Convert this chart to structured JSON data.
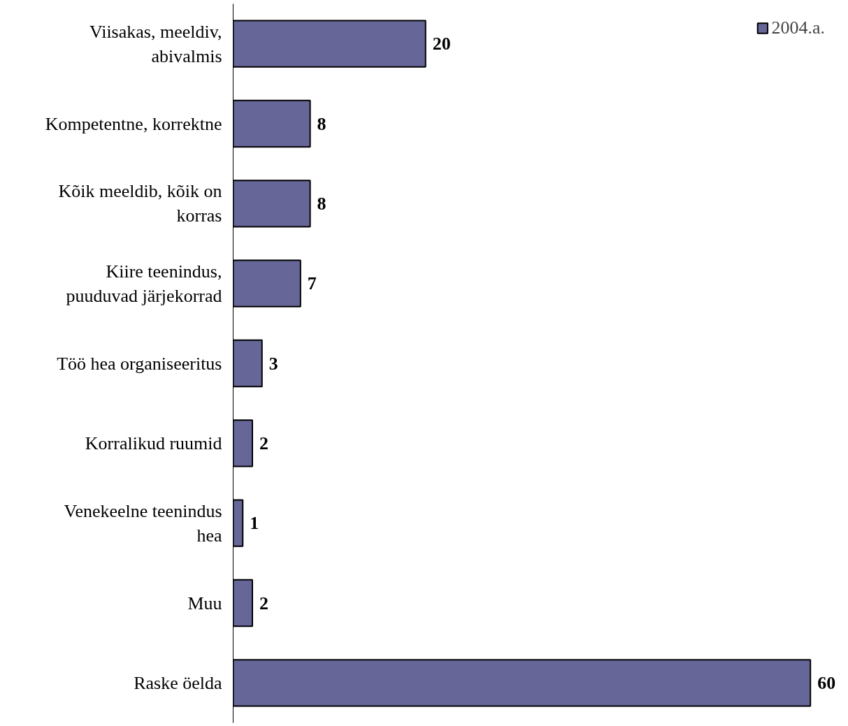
{
  "chart_data": {
    "type": "bar",
    "orientation": "horizontal",
    "categories": [
      "Viisakas, meeldiv, abivalmis",
      "Kompetentne, korrektne",
      "Kõik meeldib, kõik on korras",
      "Kiire teenindus, puuduvad järjekorrad",
      "Töö hea organiseeritus",
      "Korralikud ruumid",
      "Venekeelne teenindus hea",
      "Muu",
      "Raske öelda"
    ],
    "series": [
      {
        "name": "2004.a.",
        "color": "#666699",
        "values": [
          20,
          8,
          8,
          7,
          3,
          2,
          1,
          2,
          60
        ]
      }
    ],
    "data_labels": true,
    "legend": "top right",
    "grid": false,
    "tick_labels": "y"
  }
}
